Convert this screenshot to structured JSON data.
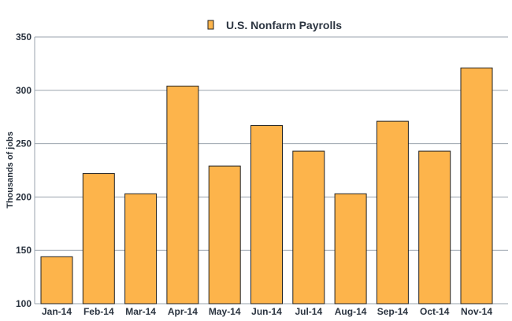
{
  "chart_data": {
    "type": "bar",
    "title": "U.S. Nonfarm Payrolls",
    "legend": [
      {
        "name": "U.S. Nonfarm Payrolls",
        "color": "#FDB44B"
      }
    ],
    "legend_position": "top-center",
    "categories": [
      "Jan-14",
      "Feb-14",
      "Mar-14",
      "Apr-14",
      "May-14",
      "Jun-14",
      "Jul-14",
      "Aug-14",
      "Sep-14",
      "Oct-14",
      "Nov-14"
    ],
    "values": [
      144,
      222,
      203,
      304,
      229,
      267,
      243,
      203,
      271,
      243,
      321
    ],
    "xlabel": "",
    "ylabel": "Thousands of jobs",
    "ylim": [
      100,
      350
    ],
    "yticks": [
      100,
      150,
      200,
      250,
      300,
      350
    ],
    "grid": true,
    "bar_color": "#FDB44B"
  }
}
